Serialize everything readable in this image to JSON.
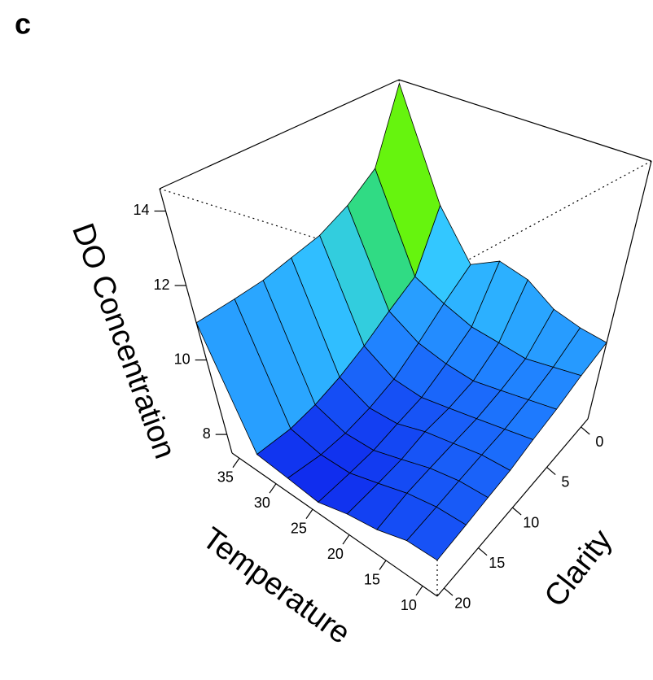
{
  "panel_label": "c",
  "chart_data": {
    "type": "surface",
    "x_label": "Temperature",
    "y_label": "Clarity",
    "z_label": "DO Concentration",
    "xlim": [
      8,
      36
    ],
    "xticks": [
      10,
      15,
      20,
      25,
      30,
      35
    ],
    "ylim": [
      -1,
      21
    ],
    "yticks": [
      0,
      5,
      10,
      15,
      20
    ],
    "zlim": [
      7.5,
      14.6
    ],
    "zticks": [
      8,
      10,
      12,
      14
    ],
    "x": [
      8,
      12,
      16,
      20,
      24,
      28,
      32,
      36
    ],
    "y": [
      -1,
      2,
      5,
      8,
      11,
      14,
      17,
      21
    ],
    "z": [
      [
        9.6,
        9.3,
        9.0,
        8.8,
        8.6,
        8.5,
        8.4,
        8.3
      ],
      [
        9.7,
        9.2,
        8.9,
        8.7,
        8.6,
        8.5,
        8.4,
        8.3
      ],
      [
        9.9,
        9.1,
        8.8,
        8.6,
        8.5,
        8.4,
        8.3,
        8.1
      ],
      [
        10.4,
        9.2,
        8.7,
        8.5,
        8.4,
        8.2,
        8.1,
        8.0
      ],
      [
        10.6,
        9.3,
        8.8,
        8.4,
        8.2,
        8.0,
        7.9,
        7.8
      ],
      [
        10.2,
        9.6,
        9.0,
        8.5,
        8.2,
        8.0,
        7.9,
        7.9
      ],
      [
        11.5,
        10.0,
        9.5,
        9.0,
        8.6,
        8.3,
        8.1,
        8.0
      ],
      [
        14.5,
        12.6,
        12.0,
        11.6,
        11.4,
        11.2,
        11.1,
        11.0
      ]
    ],
    "colormap": [
      "#0a10e8",
      "#1f7fff",
      "#33c8ff",
      "#2cf000",
      "#ffff33",
      "#ffcc66"
    ]
  }
}
